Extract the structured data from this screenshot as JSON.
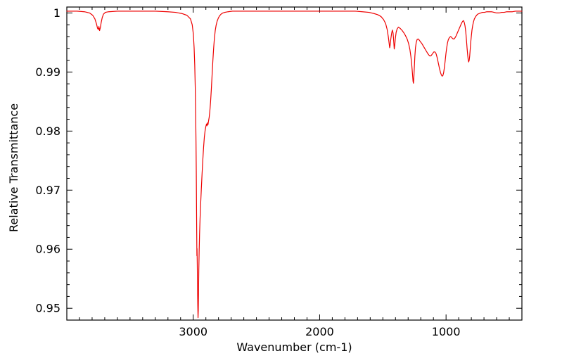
{
  "figure": {
    "background": "#ffffff",
    "axis_color": "#000000"
  },
  "chart_data": {
    "type": "line",
    "title": "",
    "xlabel": "Wavenumber (cm-1)",
    "ylabel": "Relative Transmittance",
    "grid": false,
    "legend": "none",
    "x_axis": {
      "min": 4000,
      "max": 400,
      "reversed": true,
      "major_ticks": [
        3000,
        2000,
        1000
      ],
      "major_tick_labels": [
        "3000",
        "2000",
        "1000"
      ],
      "minor_tick_step": 100
    },
    "y_axis": {
      "min": 0.948,
      "max": 1.001,
      "major_ticks": [
        0.95,
        0.96,
        0.97,
        0.98,
        0.99,
        1.0
      ],
      "major_tick_labels": [
        "0.95",
        "0.96",
        "0.97",
        "0.98",
        "0.99",
        "1"
      ],
      "minor_tick_step": 0.002
    },
    "series": [
      {
        "name": "relative-transmittance-spectrum",
        "color": "#ee0000",
        "points": [
          [
            4000,
            1.0003
          ],
          [
            3920,
            1.0003
          ],
          [
            3860,
            1.0002
          ],
          [
            3820,
            1.0
          ],
          [
            3795,
            0.9996
          ],
          [
            3778,
            0.999
          ],
          [
            3766,
            0.9982
          ],
          [
            3757,
            0.9974
          ],
          [
            3751,
            0.9972
          ],
          [
            3746,
            0.9977
          ],
          [
            3741,
            0.997
          ],
          [
            3735,
            0.9975
          ],
          [
            3728,
            0.9984
          ],
          [
            3720,
            0.9992
          ],
          [
            3710,
            0.9998
          ],
          [
            3695,
            1.0001
          ],
          [
            3670,
            1.0002
          ],
          [
            3600,
            1.0003
          ],
          [
            3500,
            1.0003
          ],
          [
            3400,
            1.0003
          ],
          [
            3300,
            1.0003
          ],
          [
            3200,
            1.0002
          ],
          [
            3140,
            1.0001
          ],
          [
            3090,
            0.9999
          ],
          [
            3050,
            0.9996
          ],
          [
            3022,
            0.999
          ],
          [
            3008,
            0.998
          ],
          [
            2999,
            0.9964
          ],
          [
            2993,
            0.9941
          ],
          [
            2988,
            0.9911
          ],
          [
            2984,
            0.9873
          ],
          [
            2981,
            0.9833
          ],
          [
            2978,
            0.978
          ],
          [
            2976,
            0.9733
          ],
          [
            2974,
            0.9672
          ],
          [
            2972,
            0.9615
          ],
          [
            2971,
            0.9589
          ],
          [
            2970,
            0.9601
          ],
          [
            2968,
            0.9575
          ],
          [
            2966,
            0.9537
          ],
          [
            2964,
            0.9505
          ],
          [
            2962,
            0.9484
          ],
          [
            2960,
            0.9497
          ],
          [
            2958,
            0.953
          ],
          [
            2956,
            0.9564
          ],
          [
            2953,
            0.9598
          ],
          [
            2950,
            0.9625
          ],
          [
            2946,
            0.9652
          ],
          [
            2941,
            0.9678
          ],
          [
            2936,
            0.9702
          ],
          [
            2930,
            0.9728
          ],
          [
            2924,
            0.9752
          ],
          [
            2918,
            0.9773
          ],
          [
            2912,
            0.979
          ],
          [
            2906,
            0.9801
          ],
          [
            2900,
            0.9808
          ],
          [
            2895,
            0.9812
          ],
          [
            2891,
            0.9809
          ],
          [
            2887,
            0.9814
          ],
          [
            2883,
            0.9811
          ],
          [
            2879,
            0.9817
          ],
          [
            2874,
            0.9823
          ],
          [
            2869,
            0.9833
          ],
          [
            2863,
            0.9849
          ],
          [
            2857,
            0.987
          ],
          [
            2851,
            0.9894
          ],
          [
            2845,
            0.9918
          ],
          [
            2839,
            0.9939
          ],
          [
            2833,
            0.9956
          ],
          [
            2826,
            0.997
          ],
          [
            2819,
            0.9979
          ],
          [
            2811,
            0.9986
          ],
          [
            2802,
            0.9991
          ],
          [
            2792,
            0.9995
          ],
          [
            2780,
            0.9998
          ],
          [
            2766,
            1.0
          ],
          [
            2750,
            1.0001
          ],
          [
            2725,
            1.0002
          ],
          [
            2690,
            1.0003
          ],
          [
            2600,
            1.0003
          ],
          [
            2500,
            1.0003
          ],
          [
            2400,
            1.0003
          ],
          [
            2300,
            1.0003
          ],
          [
            2200,
            1.0003
          ],
          [
            2100,
            1.0003
          ],
          [
            2000,
            1.0003
          ],
          [
            1900,
            1.0003
          ],
          [
            1800,
            1.0003
          ],
          [
            1720,
            1.0003
          ],
          [
            1660,
            1.0002
          ],
          [
            1610,
            1.0001
          ],
          [
            1570,
            0.9999
          ],
          [
            1540,
            0.9997
          ],
          [
            1515,
            0.9994
          ],
          [
            1495,
            0.9989
          ],
          [
            1478,
            0.9982
          ],
          [
            1466,
            0.9972
          ],
          [
            1457,
            0.996
          ],
          [
            1450,
            0.9948
          ],
          [
            1446,
            0.9941
          ],
          [
            1442,
            0.9946
          ],
          [
            1437,
            0.9956
          ],
          [
            1431,
            0.9965
          ],
          [
            1425,
            0.9971
          ],
          [
            1419,
            0.9966
          ],
          [
            1414,
            0.9952
          ],
          [
            1410,
            0.9939
          ],
          [
            1406,
            0.9945
          ],
          [
            1401,
            0.9957
          ],
          [
            1395,
            0.9967
          ],
          [
            1387,
            0.9973
          ],
          [
            1377,
            0.9976
          ],
          [
            1364,
            0.9974
          ],
          [
            1350,
            0.9971
          ],
          [
            1336,
            0.9967
          ],
          [
            1322,
            0.9962
          ],
          [
            1308,
            0.9956
          ],
          [
            1296,
            0.9948
          ],
          [
            1286,
            0.9938
          ],
          [
            1278,
            0.9926
          ],
          [
            1271,
            0.9911
          ],
          [
            1265,
            0.9895
          ],
          [
            1261,
            0.9884
          ],
          [
            1258,
            0.9881
          ],
          [
            1255,
            0.9889
          ],
          [
            1251,
            0.9908
          ],
          [
            1247,
            0.9926
          ],
          [
            1242,
            0.9941
          ],
          [
            1236,
            0.995
          ],
          [
            1229,
            0.9955
          ],
          [
            1221,
            0.9956
          ],
          [
            1212,
            0.9954
          ],
          [
            1202,
            0.9951
          ],
          [
            1191,
            0.9948
          ],
          [
            1180,
            0.9944
          ],
          [
            1169,
            0.994
          ],
          [
            1158,
            0.9936
          ],
          [
            1147,
            0.9932
          ],
          [
            1137,
            0.9929
          ],
          [
            1127,
            0.9927
          ],
          [
            1117,
            0.9928
          ],
          [
            1107,
            0.9931
          ],
          [
            1097,
            0.9934
          ],
          [
            1088,
            0.9934
          ],
          [
            1079,
            0.9931
          ],
          [
            1070,
            0.9924
          ],
          [
            1061,
            0.9915
          ],
          [
            1052,
            0.9906
          ],
          [
            1044,
            0.9899
          ],
          [
            1037,
            0.9895
          ],
          [
            1031,
            0.9893
          ],
          [
            1025,
            0.9894
          ],
          [
            1019,
            0.9899
          ],
          [
            1013,
            0.9908
          ],
          [
            1007,
            0.9919
          ],
          [
            1001,
            0.9931
          ],
          [
            995,
            0.9941
          ],
          [
            989,
            0.9949
          ],
          [
            983,
            0.9954
          ],
          [
            977,
            0.9957
          ],
          [
            971,
            0.9959
          ],
          [
            964,
            0.996
          ],
          [
            957,
            0.9959
          ],
          [
            950,
            0.9957
          ],
          [
            943,
            0.9956
          ],
          [
            936,
            0.9956
          ],
          [
            929,
            0.9958
          ],
          [
            921,
            0.9961
          ],
          [
            913,
            0.9965
          ],
          [
            905,
            0.9969
          ],
          [
            897,
            0.9973
          ],
          [
            889,
            0.9977
          ],
          [
            881,
            0.9981
          ],
          [
            874,
            0.9984
          ],
          [
            868,
            0.9986
          ],
          [
            862,
            0.9987
          ],
          [
            856,
            0.9984
          ],
          [
            850,
            0.9978
          ],
          [
            844,
            0.9968
          ],
          [
            839,
            0.9955
          ],
          [
            834,
            0.9941
          ],
          [
            829,
            0.9929
          ],
          [
            825,
            0.9921
          ],
          [
            821,
            0.9917
          ],
          [
            817,
            0.992
          ],
          [
            813,
            0.9927
          ],
          [
            809,
            0.9938
          ],
          [
            805,
            0.995
          ],
          [
            800,
            0.9961
          ],
          [
            795,
            0.9971
          ],
          [
            789,
            0.9979
          ],
          [
            783,
            0.9985
          ],
          [
            776,
            0.999
          ],
          [
            768,
            0.9993
          ],
          [
            759,
            0.9996
          ],
          [
            749,
            0.9998
          ],
          [
            738,
            0.9999
          ],
          [
            726,
            1.0
          ],
          [
            712,
            1.0001
          ],
          [
            696,
            1.0001
          ],
          [
            678,
            1.0002
          ],
          [
            660,
            1.0002
          ],
          [
            640,
            1.0002
          ],
          [
            620,
            1.0001
          ],
          [
            600,
            1.0
          ],
          [
            580,
            1.0
          ],
          [
            560,
            1.0001
          ],
          [
            540,
            1.0001
          ],
          [
            520,
            1.0002
          ],
          [
            500,
            1.0002
          ],
          [
            475,
            1.0002
          ],
          [
            450,
            1.0003
          ],
          [
            425,
            1.0003
          ],
          [
            400,
            1.0003
          ]
        ]
      }
    ]
  }
}
